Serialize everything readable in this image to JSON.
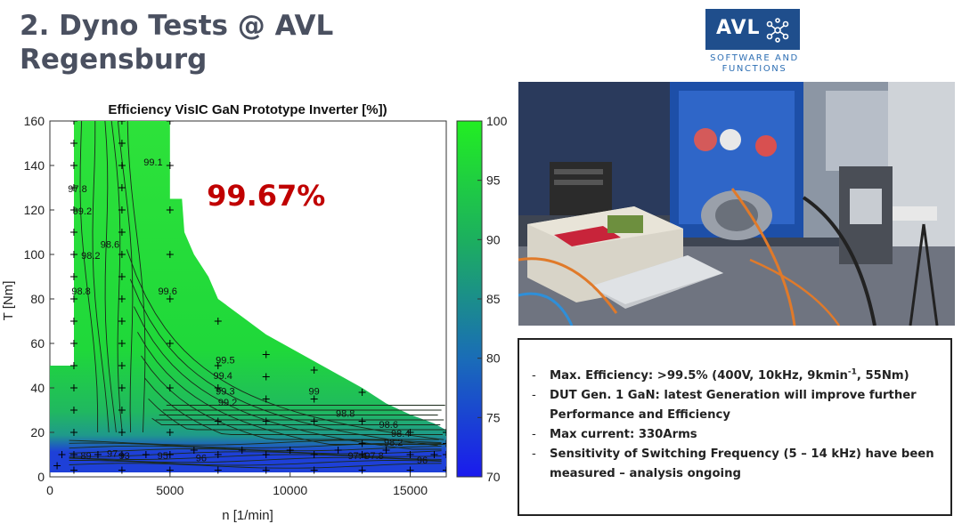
{
  "slide": {
    "title_line1": "2. Dyno Tests @ AVL",
    "title_line2": "Regensburg"
  },
  "logo": {
    "brand": "AVL",
    "sub1": "SOFTWARE AND",
    "sub2": "FUNCTIONS",
    "brand_color": "#1f4e8c",
    "sub_color": "#2e6fb4"
  },
  "photo": {
    "image": "photo-icon",
    "colors": {
      "cabinet_blue": "#1d4fa8",
      "grey_box": "#d8d4c8",
      "orange_cable": "#e07a2a",
      "red_pcb": "#c8243a"
    }
  },
  "info": {
    "items": [
      {
        "text": "Max. Efficiency: >99.5% (400V, 10kHz, 9kmin",
        "sup": "-1",
        "tail": ", 55Nm)"
      },
      {
        "text": "DUT Gen. 1 GaN: latest Generation will improve further Performance and Efficiency"
      },
      {
        "text": "Max current: 330Arms"
      },
      {
        "text": "Sensitivity of Switching Frequency (5 – 14 kHz) have been measured – analysis ongoing"
      }
    ]
  },
  "chart_data": {
    "type": "heatmap",
    "title": "Efficiency VisIC GaN Prototype Inverter [%])",
    "xlabel": "n [1/min]",
    "ylabel": "T [Nm]",
    "xlim": [
      0,
      16500
    ],
    "ylim": [
      0,
      160
    ],
    "x_ticks": [
      0,
      5000,
      10000,
      15000
    ],
    "y_ticks": [
      0,
      20,
      40,
      60,
      80,
      100,
      120,
      140,
      160
    ],
    "annotation": {
      "text": "99.67%",
      "color": "#c00000",
      "x": 9000,
      "y": 122
    },
    "colorbar": {
      "min": 70,
      "max": 100,
      "ticks": [
        70,
        75,
        80,
        85,
        90,
        95,
        100
      ],
      "low_color": "#1a1aee",
      "high_color": "#22ee22"
    },
    "map_boundary": [
      [
        1000,
        160
      ],
      [
        5000,
        160
      ],
      [
        5000,
        125
      ],
      [
        5500,
        125
      ],
      [
        5600,
        110
      ],
      [
        6000,
        100
      ],
      [
        6600,
        90
      ],
      [
        7000,
        80
      ],
      [
        8000,
        72
      ],
      [
        9000,
        64
      ],
      [
        10000,
        58
      ],
      [
        11000,
        52
      ],
      [
        12000,
        46
      ],
      [
        13000,
        40
      ],
      [
        14000,
        33
      ],
      [
        15000,
        28
      ],
      [
        16000,
        24
      ],
      [
        16500,
        21
      ],
      [
        16500,
        2
      ],
      [
        0,
        2
      ],
      [
        0,
        50
      ],
      [
        1000,
        50
      ]
    ],
    "contour_labels": [
      {
        "text": "99.1",
        "x": 4300,
        "y": 140
      },
      {
        "text": "99.2",
        "x": 1350,
        "y": 118
      },
      {
        "text": "97.8",
        "x": 1150,
        "y": 128
      },
      {
        "text": "98.6",
        "x": 2500,
        "y": 103
      },
      {
        "text": "98.2",
        "x": 1700,
        "y": 98
      },
      {
        "text": "98.8",
        "x": 1300,
        "y": 82
      },
      {
        "text": "99.6",
        "x": 4900,
        "y": 82
      },
      {
        "text": "99.5",
        "x": 7300,
        "y": 51
      },
      {
        "text": "99.4",
        "x": 7200,
        "y": 44
      },
      {
        "text": "99.3",
        "x": 7300,
        "y": 37
      },
      {
        "text": "99.2",
        "x": 7400,
        "y": 32
      },
      {
        "text": "99",
        "x": 11000,
        "y": 37
      },
      {
        "text": "98.8",
        "x": 12300,
        "y": 27
      },
      {
        "text": "98.6",
        "x": 14100,
        "y": 22
      },
      {
        "text": "98.4",
        "x": 14600,
        "y": 18
      },
      {
        "text": "98.2",
        "x": 14300,
        "y": 14
      },
      {
        "text": "97.8",
        "x": 13500,
        "y": 8
      },
      {
        "text": "97.4",
        "x": 12800,
        "y": 8
      },
      {
        "text": "96",
        "x": 15500,
        "y": 6
      },
      {
        "text": "95",
        "x": 4700,
        "y": 8
      },
      {
        "text": "93",
        "x": 3100,
        "y": 8
      },
      {
        "text": "97",
        "x": 2600,
        "y": 9
      },
      {
        "text": "89",
        "x": 1500,
        "y": 8
      },
      {
        "text": "96",
        "x": 6300,
        "y": 7
      }
    ],
    "measurement_points": [
      [
        1000,
        160
      ],
      [
        1000,
        150
      ],
      [
        1000,
        140
      ],
      [
        1000,
        130
      ],
      [
        1000,
        120
      ],
      [
        1000,
        110
      ],
      [
        1000,
        100
      ],
      [
        1000,
        90
      ],
      [
        1000,
        80
      ],
      [
        1000,
        70
      ],
      [
        1000,
        60
      ],
      [
        1000,
        50
      ],
      [
        1000,
        40
      ],
      [
        1000,
        30
      ],
      [
        1000,
        20
      ],
      [
        1000,
        10
      ],
      [
        1000,
        3
      ],
      [
        3000,
        160
      ],
      [
        3000,
        150
      ],
      [
        3000,
        140
      ],
      [
        3000,
        130
      ],
      [
        3000,
        120
      ],
      [
        3000,
        110
      ],
      [
        3000,
        100
      ],
      [
        3000,
        90
      ],
      [
        3000,
        80
      ],
      [
        3000,
        70
      ],
      [
        3000,
        60
      ],
      [
        3000,
        50
      ],
      [
        3000,
        40
      ],
      [
        3000,
        30
      ],
      [
        3000,
        20
      ],
      [
        3000,
        10
      ],
      [
        3000,
        3
      ],
      [
        5000,
        160
      ],
      [
        5000,
        140
      ],
      [
        5000,
        120
      ],
      [
        5000,
        100
      ],
      [
        5000,
        80
      ],
      [
        5000,
        60
      ],
      [
        5000,
        40
      ],
      [
        5000,
        20
      ],
      [
        5000,
        10
      ],
      [
        5000,
        3
      ],
      [
        7000,
        70
      ],
      [
        7000,
        50
      ],
      [
        7000,
        40
      ],
      [
        7000,
        25
      ],
      [
        7000,
        10
      ],
      [
        7000,
        3
      ],
      [
        9000,
        55
      ],
      [
        9000,
        45
      ],
      [
        9000,
        35
      ],
      [
        9000,
        25
      ],
      [
        9000,
        10
      ],
      [
        9000,
        3
      ],
      [
        11000,
        48
      ],
      [
        11000,
        35
      ],
      [
        11000,
        25
      ],
      [
        11000,
        10
      ],
      [
        11000,
        3
      ],
      [
        13000,
        38
      ],
      [
        13000,
        25
      ],
      [
        13000,
        15
      ],
      [
        13000,
        10
      ],
      [
        13000,
        3
      ],
      [
        15000,
        20
      ],
      [
        15000,
        10
      ],
      [
        15000,
        3
      ],
      [
        16500,
        20
      ],
      [
        16500,
        15
      ],
      [
        16500,
        10
      ],
      [
        16500,
        3
      ],
      [
        6000,
        12
      ],
      [
        8000,
        12
      ],
      [
        10000,
        12
      ],
      [
        12000,
        12
      ],
      [
        14000,
        12
      ],
      [
        16000,
        10
      ],
      [
        4000,
        10
      ],
      [
        2000,
        10
      ],
      [
        500,
        10
      ],
      [
        300,
        5
      ]
    ]
  }
}
